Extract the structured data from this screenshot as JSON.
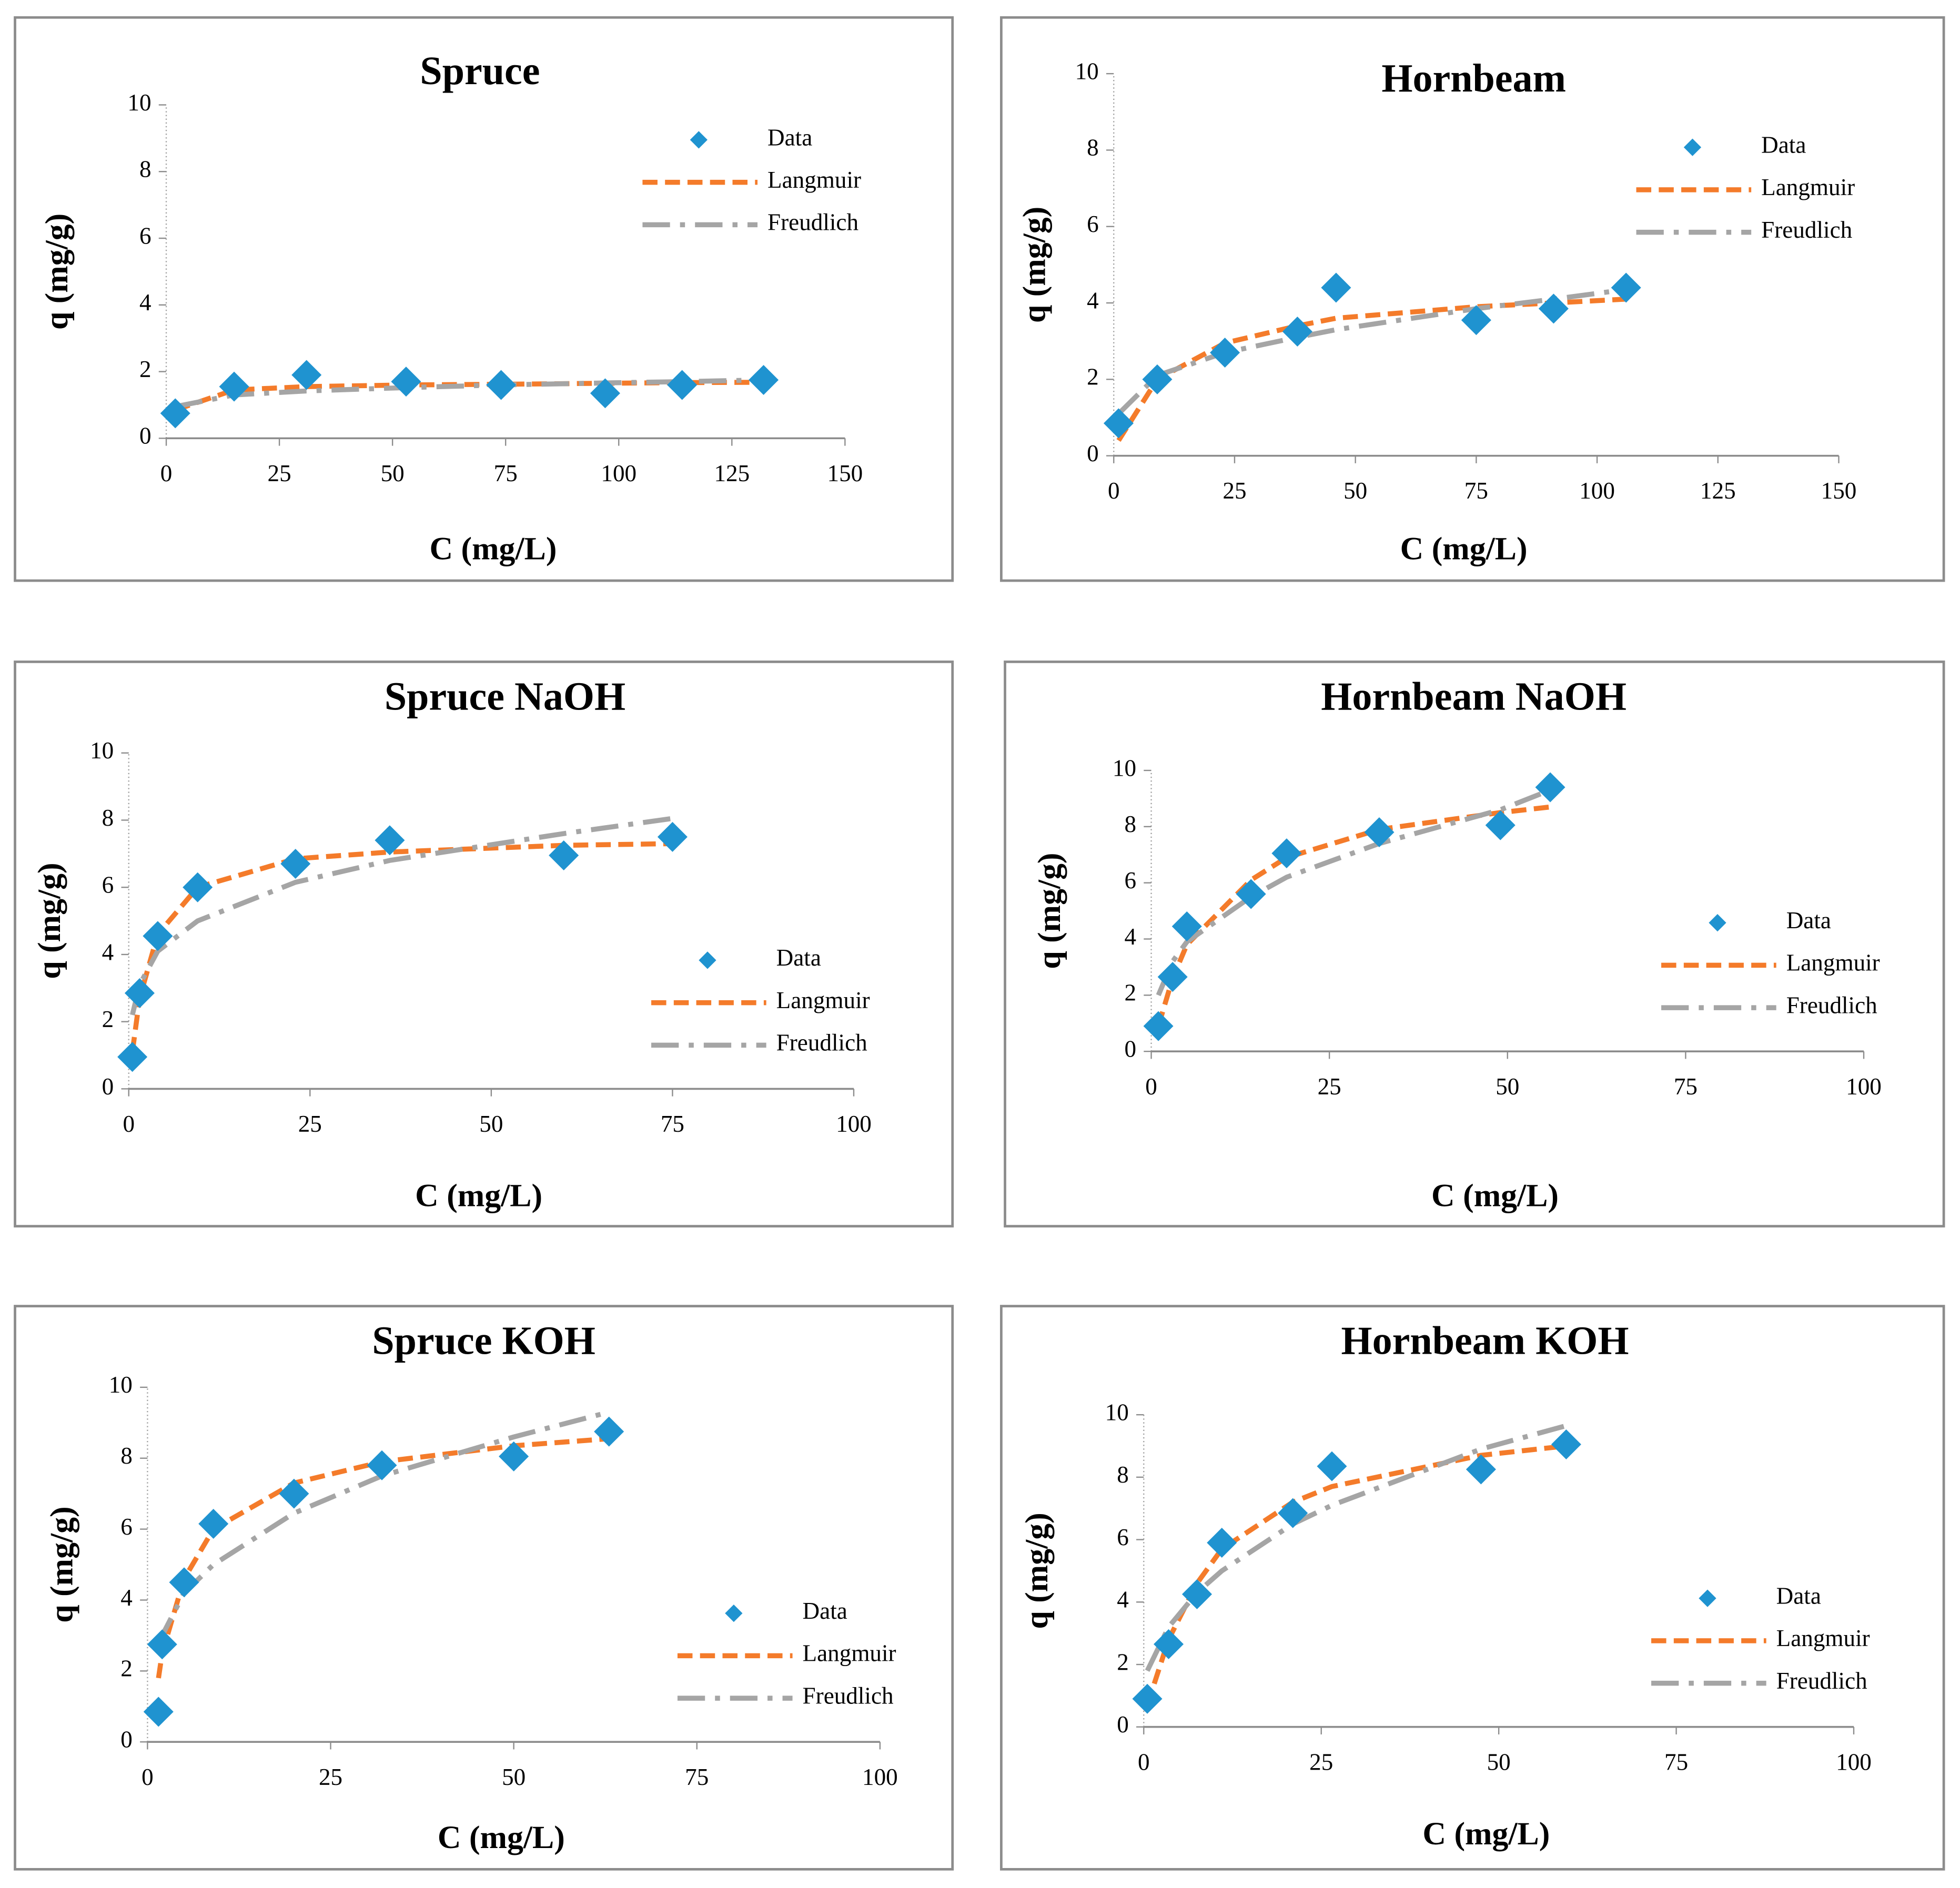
{
  "chart_data": [
    {
      "type": "scatter",
      "title": "Spruce",
      "xlabel": "C (mg/L)",
      "ylabel": "q (mg/g)",
      "xlim": [
        0,
        150
      ],
      "xticks": [
        0,
        25,
        50,
        75,
        100,
        125,
        150
      ],
      "ylim": [
        0,
        10
      ],
      "yticks": [
        0,
        2,
        4,
        6,
        8,
        10
      ],
      "grid": false,
      "legend": "upper-right",
      "series": [
        {
          "name": "Data",
          "color": "#1f93d0",
          "style": "marker",
          "x": [
            2,
            15,
            31,
            53,
            74,
            97,
            114,
            132
          ],
          "values": [
            0.75,
            1.55,
            1.9,
            1.7,
            1.6,
            1.35,
            1.6,
            1.75
          ]
        },
        {
          "name": "Langmuir",
          "color": "#f47b2a",
          "style": "dash",
          "x": [
            2,
            15,
            31,
            53,
            74,
            97,
            114,
            132
          ],
          "values": [
            0.85,
            1.45,
            1.55,
            1.6,
            1.62,
            1.65,
            1.67,
            1.68
          ]
        },
        {
          "name": "Freudlich",
          "color": "#a5a5a5",
          "style": "dashdot",
          "x": [
            2,
            15,
            31,
            53,
            74,
            97,
            114,
            132
          ],
          "values": [
            0.95,
            1.3,
            1.42,
            1.52,
            1.6,
            1.66,
            1.7,
            1.75
          ]
        }
      ]
    },
    {
      "type": "scatter",
      "title": "Hornbeam",
      "xlabel": "C (mg/L)",
      "ylabel": "q (mg/g)",
      "xlim": [
        0,
        150
      ],
      "xticks": [
        0,
        25,
        50,
        75,
        100,
        125,
        150
      ],
      "ylim": [
        0,
        10
      ],
      "yticks": [
        0,
        2,
        4,
        6,
        8,
        10
      ],
      "grid": false,
      "legend": "upper-right",
      "series": [
        {
          "name": "Data",
          "color": "#1f93d0",
          "style": "marker",
          "x": [
            1,
            9,
            23,
            38,
            46,
            75,
            91,
            106
          ],
          "values": [
            0.85,
            2.0,
            2.7,
            3.25,
            4.4,
            3.55,
            3.85,
            4.4
          ]
        },
        {
          "name": "Langmuir",
          "color": "#f47b2a",
          "style": "dash",
          "x": [
            1,
            9,
            23,
            38,
            46,
            75,
            91,
            106
          ],
          "values": [
            0.4,
            2.0,
            2.95,
            3.4,
            3.6,
            3.9,
            4.0,
            4.1
          ]
        },
        {
          "name": "Freudlich",
          "color": "#a5a5a5",
          "style": "dashdot",
          "x": [
            1,
            9,
            23,
            38,
            46,
            75,
            91,
            106
          ],
          "values": [
            1.1,
            2.1,
            2.7,
            3.1,
            3.3,
            3.85,
            4.1,
            4.35
          ]
        }
      ]
    },
    {
      "type": "scatter",
      "title": "Spruce NaOH",
      "xlabel": "C (mg/L)",
      "ylabel": "q (mg/g)",
      "xlim": [
        0,
        100
      ],
      "xticks": [
        0,
        25,
        50,
        75,
        100
      ],
      "ylim": [
        0,
        10
      ],
      "yticks": [
        0,
        2,
        4,
        6,
        8,
        10
      ],
      "grid": false,
      "legend": "lower-right",
      "series": [
        {
          "name": "Data",
          "color": "#1f93d0",
          "style": "marker",
          "x": [
            0.5,
            1.5,
            4,
            9.5,
            23,
            36,
            60,
            75
          ],
          "values": [
            0.95,
            2.85,
            4.55,
            6.0,
            6.7,
            7.4,
            6.95,
            7.5
          ]
        },
        {
          "name": "Langmuir",
          "color": "#f47b2a",
          "style": "dash",
          "x": [
            0.5,
            1.5,
            4,
            9.5,
            23,
            36,
            60,
            75
          ],
          "values": [
            1.1,
            2.7,
            4.6,
            6.0,
            6.85,
            7.05,
            7.25,
            7.3
          ]
        },
        {
          "name": "Freudlich",
          "color": "#a5a5a5",
          "style": "dashdot",
          "x": [
            0.5,
            1.5,
            4,
            9.5,
            23,
            36,
            60,
            75
          ],
          "values": [
            2.2,
            3.1,
            4.1,
            5.0,
            6.15,
            6.8,
            7.6,
            8.05
          ]
        }
      ]
    },
    {
      "type": "scatter",
      "title": "Hornbeam NaOH",
      "xlabel": "C (mg/L)",
      "ylabel": "q (mg/g)",
      "xlim": [
        0,
        100
      ],
      "xticks": [
        0,
        25,
        50,
        75,
        100
      ],
      "ylim": [
        0,
        10
      ],
      "yticks": [
        0,
        2,
        4,
        6,
        8,
        10
      ],
      "grid": false,
      "legend": "lower-right",
      "series": [
        {
          "name": "Data",
          "color": "#1f93d0",
          "style": "marker",
          "x": [
            1,
            3,
            5,
            14,
            19,
            32,
            49,
            56
          ],
          "values": [
            0.9,
            2.65,
            4.45,
            5.6,
            7.05,
            7.8,
            8.05,
            9.4
          ]
        },
        {
          "name": "Langmuir",
          "color": "#f47b2a",
          "style": "dash",
          "x": [
            1,
            3,
            5,
            14,
            19,
            32,
            49,
            56
          ],
          "values": [
            0.9,
            2.6,
            3.8,
            6.1,
            6.9,
            7.9,
            8.5,
            8.7
          ]
        },
        {
          "name": "Freudlich",
          "color": "#a5a5a5",
          "style": "dashdot",
          "x": [
            1,
            3,
            5,
            14,
            19,
            32,
            49,
            56
          ],
          "values": [
            2.0,
            3.2,
            3.9,
            5.5,
            6.2,
            7.4,
            8.6,
            9.3
          ]
        }
      ]
    },
    {
      "type": "scatter",
      "title": "Spruce KOH",
      "xlabel": "C (mg/L)",
      "ylabel": "q (mg/g)",
      "xlim": [
        0,
        100
      ],
      "xticks": [
        0,
        25,
        50,
        75,
        100
      ],
      "ylim": [
        0,
        10
      ],
      "yticks": [
        0,
        2,
        4,
        6,
        8,
        10
      ],
      "grid": false,
      "legend": "lower-right",
      "series": [
        {
          "name": "Data",
          "color": "#1f93d0",
          "style": "marker",
          "x": [
            1.5,
            2,
            5,
            9,
            20,
            32,
            50,
            63
          ],
          "values": [
            0.85,
            2.75,
            4.5,
            6.15,
            7.0,
            7.8,
            8.05,
            8.75
          ]
        },
        {
          "name": "Langmuir",
          "color": "#f47b2a",
          "style": "dash",
          "x": [
            1.5,
            2,
            5,
            9,
            20,
            32,
            50,
            63
          ],
          "values": [
            1.8,
            2.5,
            4.6,
            6.0,
            7.3,
            7.9,
            8.35,
            8.55
          ]
        },
        {
          "name": "Freudlich",
          "color": "#a5a5a5",
          "style": "dashdot",
          "x": [
            1.5,
            2,
            5,
            9,
            20,
            32,
            50,
            63
          ],
          "values": [
            2.8,
            3.0,
            4.2,
            5.0,
            6.45,
            7.5,
            8.6,
            9.3
          ]
        }
      ]
    },
    {
      "type": "scatter",
      "title": "Hornbeam KOH",
      "xlabel": "C (mg/L)",
      "ylabel": "q (mg/g)",
      "xlim": [
        0,
        100
      ],
      "xticks": [
        0,
        25,
        50,
        75,
        100
      ],
      "ylim": [
        0,
        10
      ],
      "yticks": [
        0,
        2,
        4,
        6,
        8,
        10
      ],
      "grid": false,
      "legend": "lower-right",
      "series": [
        {
          "name": "Data",
          "color": "#1f93d0",
          "style": "marker",
          "x": [
            0.5,
            3.5,
            7.5,
            11,
            21,
            26.5,
            47.5,
            59.5
          ],
          "values": [
            0.9,
            2.65,
            4.25,
            5.9,
            6.85,
            8.35,
            8.25,
            9.05
          ]
        },
        {
          "name": "Langmuir",
          "color": "#f47b2a",
          "style": "dash",
          "x": [
            0.5,
            3.5,
            7.5,
            11,
            21,
            26.5,
            47.5,
            59.5
          ],
          "values": [
            0.7,
            2.8,
            4.6,
            5.7,
            7.2,
            7.7,
            8.7,
            9.0
          ]
        },
        {
          "name": "Freudlich",
          "color": "#a5a5a5",
          "style": "dashdot",
          "x": [
            0.5,
            3.5,
            7.5,
            11,
            21,
            26.5,
            47.5,
            59.5
          ],
          "values": [
            1.8,
            3.2,
            4.3,
            5.0,
            6.5,
            7.1,
            8.9,
            9.65
          ]
        }
      ]
    }
  ]
}
